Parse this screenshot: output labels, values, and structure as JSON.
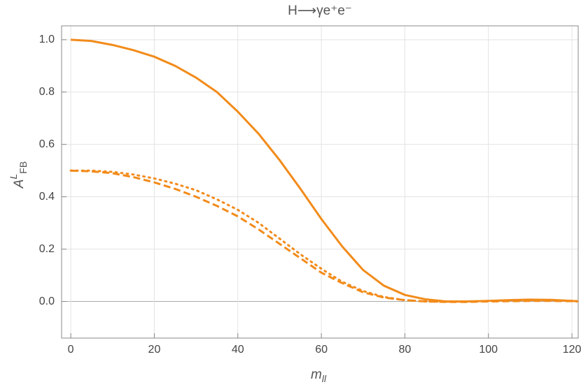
{
  "chart_data": {
    "type": "line",
    "title": "H⟶γe⁺e⁻",
    "x_label": [
      "m",
      "ll"
    ],
    "y_label": [
      "A",
      "L",
      "FB"
    ],
    "x": [
      0,
      5,
      10,
      15,
      20,
      25,
      30,
      35,
      40,
      45,
      50,
      55,
      60,
      65,
      70,
      75,
      80,
      85,
      90,
      95,
      100,
      105,
      110,
      115,
      120,
      122
    ],
    "series": [
      {
        "color": "#f28b1a",
        "dash": "solid",
        "values": [
          1.0,
          0.995,
          0.98,
          0.96,
          0.935,
          0.9,
          0.855,
          0.8,
          0.725,
          0.64,
          0.54,
          0.43,
          0.315,
          0.21,
          0.12,
          0.06,
          0.025,
          0.008,
          0.0,
          0.0,
          0.002,
          0.005,
          0.007,
          0.006,
          0.002,
          0.0
        ]
      },
      {
        "color": "#f28b1a",
        "dash": "dashed",
        "values": [
          0.5,
          0.497,
          0.49,
          0.475,
          0.455,
          0.43,
          0.4,
          0.365,
          0.325,
          0.275,
          0.22,
          0.165,
          0.11,
          0.07,
          0.035,
          0.015,
          0.005,
          0.0,
          -0.002,
          -0.002,
          0.0,
          0.001,
          0.002,
          0.002,
          0.001,
          0.0
        ]
      },
      {
        "color": "#f28b1a",
        "dash": "dotted",
        "values": [
          0.5,
          0.5,
          0.495,
          0.485,
          0.47,
          0.45,
          0.425,
          0.39,
          0.35,
          0.3,
          0.24,
          0.18,
          0.125,
          0.075,
          0.04,
          0.017,
          0.005,
          0.0,
          -0.001,
          0.0,
          0.002,
          0.004,
          0.005,
          0.004,
          0.002,
          0.0
        ]
      }
    ],
    "xlim": [
      -2.2,
      121.5
    ],
    "ylim": [
      -0.14,
      1.053
    ],
    "xticks": [
      0,
      20,
      40,
      60,
      80,
      100,
      120
    ],
    "yticks": [
      {
        "value": 0,
        "label": "0.0"
      },
      0.2,
      0.4,
      0.6,
      0.8,
      {
        "value": 1,
        "label": "1.0"
      }
    ],
    "grid": true
  }
}
